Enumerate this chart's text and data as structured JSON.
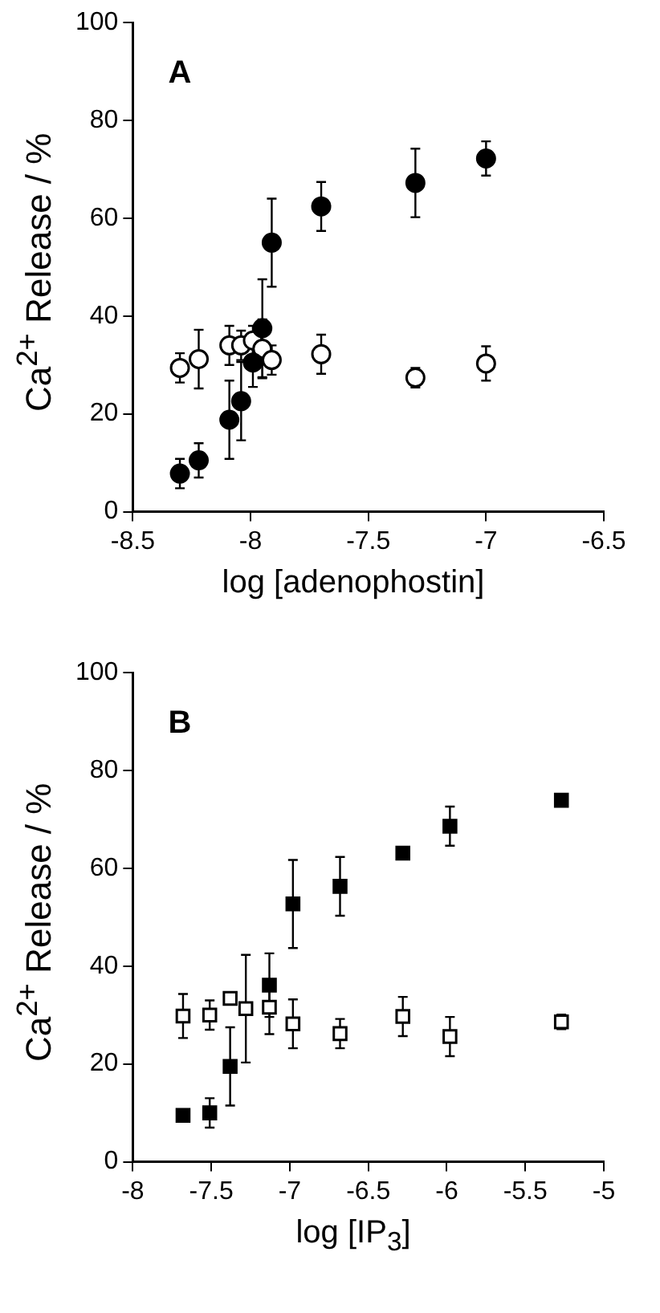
{
  "chart_data": [
    {
      "type": "scatter",
      "annotations": [
        "A"
      ],
      "xlabel": "log [adenophostin]",
      "ylabel": "Ca$^{2+}$ Release / %",
      "xlim": [
        -8.5,
        -6.5
      ],
      "xticks": [
        -8.5,
        -8,
        -7.5,
        -7,
        -6.5
      ],
      "ylim": [
        0,
        100
      ],
      "yticks": [
        0,
        20,
        40,
        60,
        80,
        100
      ],
      "grid": false,
      "legend": false,
      "marker": "circle",
      "series": [
        {
          "color": "#000000",
          "x": [
            -8.3,
            -8.22,
            -8.09,
            -8.04,
            -7.99,
            -7.95,
            -7.91,
            -7.7,
            -7.3,
            -7.0
          ],
          "values": [
            7.8,
            10.5,
            18.8,
            22.6,
            30.5,
            37.5,
            55,
            62.4,
            67.2,
            72.2
          ],
          "errors": [
            3,
            3.5,
            8,
            8,
            5,
            10,
            9,
            5,
            7,
            3.5
          ]
        },
        {
          "color": "#ffffff",
          "x": [
            -8.3,
            -8.22,
            -8.09,
            -8.04,
            -7.99,
            -7.95,
            -7.91,
            -7.7,
            -7.3,
            -7.0
          ],
          "values": [
            29.4,
            31.2,
            34,
            34,
            35,
            33.3,
            31,
            32.2,
            27.4,
            30.3
          ],
          "errors": [
            3,
            6,
            4,
            3,
            3,
            6,
            3,
            4,
            2,
            3.5
          ]
        }
      ]
    },
    {
      "type": "scatter",
      "annotations": [
        "B"
      ],
      "xlabel": "log [IP$_{3}$]",
      "ylabel": "Ca$^{2+}$ Release / %",
      "xlim": [
        -8,
        -5
      ],
      "xticks": [
        -8,
        -7.5,
        -7,
        -6.5,
        -6,
        -5.5,
        -5
      ],
      "ylim": [
        0,
        100
      ],
      "yticks": [
        0,
        20,
        40,
        60,
        80,
        100
      ],
      "grid": false,
      "legend": false,
      "marker": "square",
      "series": [
        {
          "color": "#000000",
          "x": [
            -7.68,
            -7.51,
            -7.38,
            -7.13,
            -6.98,
            -6.68,
            -6.28,
            -5.98,
            -5.27
          ],
          "values": [
            9.5,
            10,
            19.5,
            36.1,
            52.7,
            56.3,
            63.1,
            68.6,
            73.9
          ],
          "errors": [
            null,
            3,
            8,
            6.5,
            9,
            6,
            null,
            4,
            null
          ]
        },
        {
          "color": "#ffffff",
          "x": [
            -7.68,
            -7.51,
            -7.38,
            -7.28,
            -7.13,
            -6.98,
            -6.68,
            -6.28,
            -5.98,
            -5.27
          ],
          "values": [
            29.8,
            30,
            33.4,
            31.3,
            31.6,
            28.2,
            26.2,
            29.7,
            25.6,
            28.6
          ],
          "errors": [
            4.5,
            3,
            null,
            11,
            5.5,
            5,
            3,
            4,
            4,
            1.5
          ]
        }
      ]
    }
  ]
}
